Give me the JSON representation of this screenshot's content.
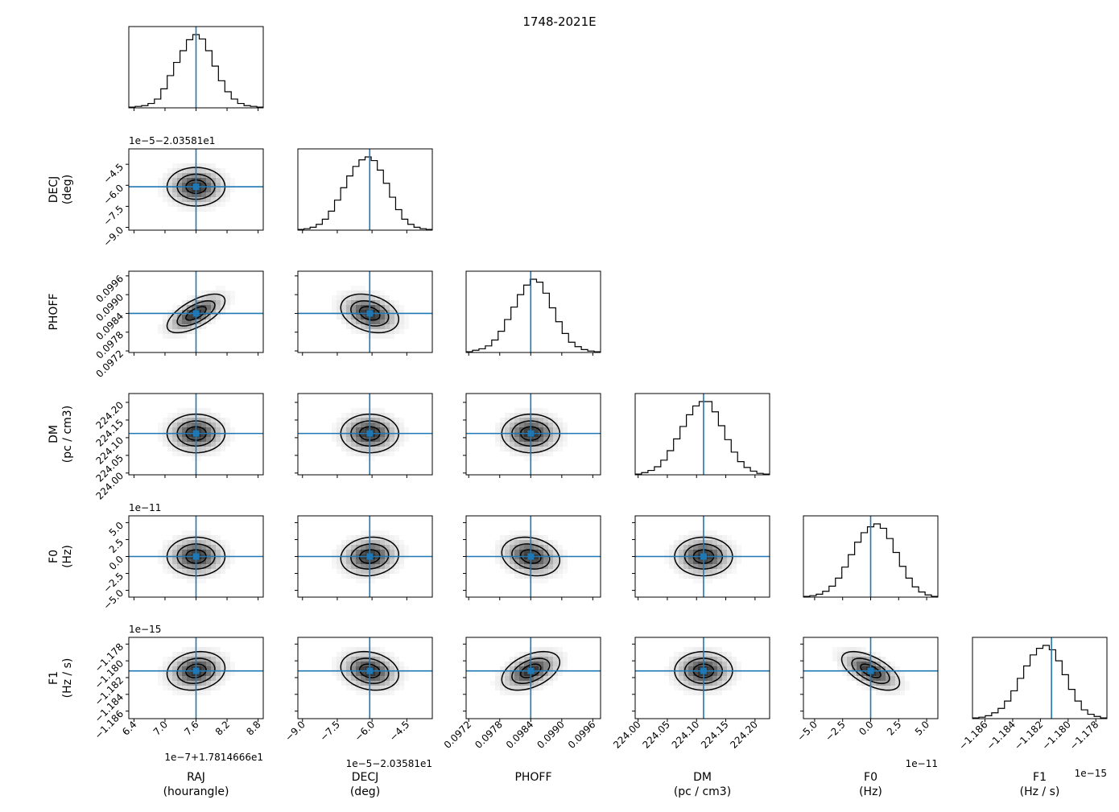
{
  "title": "1748-2021E",
  "line_color": "#1f77b4",
  "chart_data": {
    "type": "corner",
    "title": "1748-2021E",
    "parameters": [
      {
        "key": "RAJ",
        "axis_label": "RAJ",
        "unit_label": "(hourangle)",
        "offset_text": "1e−7+1.7814666e1",
        "offset_text_left": "1e−7+1.7814666e1",
        "range": [
          6.3,
          8.9
        ],
        "truth": 7.6,
        "ticks": [
          "6.4",
          "7.0",
          "7.6",
          "8.2",
          "8.8"
        ],
        "tick_values": [
          6.4,
          7.0,
          7.6,
          8.2,
          8.8
        ],
        "hist": [
          1,
          2,
          3,
          6,
          12,
          26,
          44,
          62,
          78,
          93,
          100,
          94,
          78,
          57,
          37,
          22,
          12,
          6,
          3,
          2,
          1
        ]
      },
      {
        "key": "DECJ",
        "axis_label": "DECJ",
        "unit_label": "(deg)",
        "offset_text": "1e−5−2.03581e1",
        "offset_text_left": "1e−5−2.03581e1",
        "range": [
          -9.2,
          -3.4
        ],
        "truth": -6.1,
        "ticks": [
          "−9.0",
          "−7.5",
          "−6.0",
          "−4.5"
        ],
        "tick_values": [
          -9.0,
          -7.5,
          -6.0,
          -4.5
        ],
        "hist": [
          1,
          2,
          4,
          8,
          15,
          26,
          41,
          58,
          74,
          87,
          96,
          100,
          95,
          82,
          64,
          45,
          28,
          15,
          8,
          4,
          2,
          1
        ]
      },
      {
        "key": "PHOFF",
        "axis_label": "PHOFF",
        "unit_label": "",
        "offset_text": "",
        "offset_text_left": "",
        "range": [
          0.09715,
          0.09975
        ],
        "truth": 0.0984,
        "ticks": [
          "0.0972",
          "0.0978",
          "0.0984",
          "0.0990",
          "0.0996"
        ],
        "tick_values": [
          0.0972,
          0.0978,
          0.0984,
          0.099,
          0.0996
        ],
        "hist": [
          1,
          3,
          5,
          9,
          17,
          29,
          45,
          62,
          79,
          92,
          100,
          96,
          81,
          61,
          42,
          26,
          14,
          8,
          4,
          2,
          1
        ]
      },
      {
        "key": "DM",
        "axis_label": "DM",
        "unit_label": "(pc / cm3)",
        "offset_text": "",
        "offset_text_left": "",
        "range": [
          223.995,
          224.225
        ],
        "truth": 224.112,
        "ticks": [
          "224.00",
          "224.05",
          "224.10",
          "224.15",
          "224.20"
        ],
        "tick_values": [
          224.0,
          224.05,
          224.1,
          224.15,
          224.2
        ],
        "hist": [
          1,
          3,
          6,
          11,
          20,
          33,
          49,
          66,
          82,
          94,
          100,
          100,
          86,
          67,
          48,
          31,
          18,
          10,
          5,
          2,
          1
        ]
      },
      {
        "key": "F0",
        "axis_label": "F0",
        "unit_label": "(Hz)",
        "offset_text": "1e−11",
        "offset_text_left": "1e−11",
        "range": [
          -6.0,
          6.0
        ],
        "truth": 0.0,
        "ticks": [
          "−5.0",
          "−2.5",
          "0.0",
          "2.5",
          "5.0"
        ],
        "tick_values": [
          -5.0,
          -2.5,
          0.0,
          2.5,
          5.0
        ],
        "hist": [
          1,
          2,
          4,
          8,
          15,
          26,
          41,
          58,
          75,
          88,
          96,
          100,
          94,
          80,
          61,
          42,
          26,
          14,
          7,
          3,
          1
        ]
      },
      {
        "key": "F1",
        "axis_label": "F1",
        "unit_label": "(Hz / s)",
        "offset_text": "1e−15",
        "offset_text_left": "1e−15",
        "range": [
          -1.1869,
          -1.1772
        ],
        "truth": -1.1812,
        "ticks": [
          "−1.186",
          "−1.184",
          "−1.182",
          "−1.180",
          "−1.178"
        ],
        "tick_values": [
          -1.186,
          -1.184,
          -1.182,
          -1.18,
          -1.178
        ],
        "left_ticks": [
          "−1.178",
          "−1.180",
          "−1.182",
          "−1.184",
          "−1.186"
        ],
        "hist": [
          1,
          2,
          4,
          8,
          14,
          24,
          38,
          55,
          72,
          87,
          96,
          100,
          94,
          79,
          60,
          40,
          24,
          12,
          6,
          3,
          1
        ]
      }
    ],
    "correlations": {
      "1-0": 0.0,
      "2-0": 0.65,
      "2-1": -0.3,
      "3-0": 0.0,
      "3-1": 0.0,
      "3-2": 0.0,
      "4-0": 0.0,
      "4-1": 0.1,
      "4-2": -0.2,
      "4-3": 0.0,
      "5-0": 0.15,
      "5-1": -0.2,
      "5-2": 0.45,
      "5-3": 0.0,
      "5-4": -0.6
    }
  }
}
